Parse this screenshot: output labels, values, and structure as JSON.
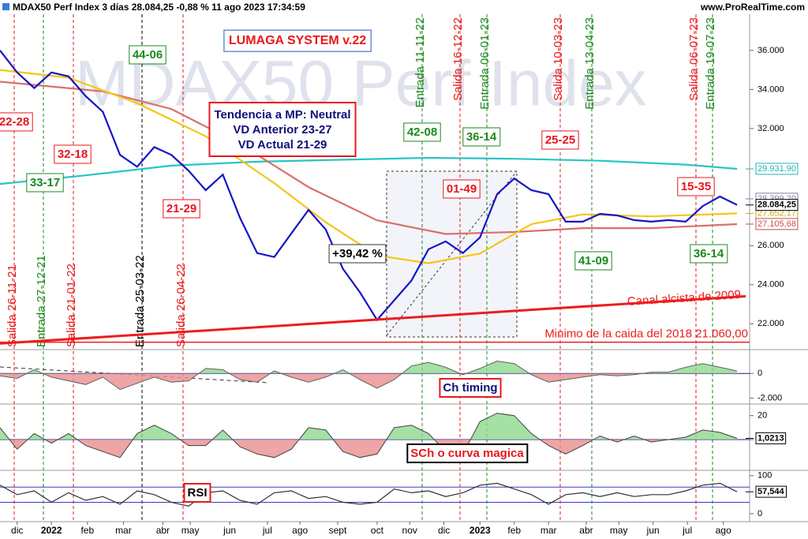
{
  "header": {
    "title": "MDAX50 Perf Index 3 días 28.084,25 -0,88 % 11 ago 2023 17:34:59",
    "source": "www.ProRealTime.com"
  },
  "chart_data": [
    {
      "type": "line",
      "title": "MDAX50 Perf Index",
      "x": [
        0,
        1,
        2,
        3,
        4,
        5,
        6,
        7,
        8,
        9,
        10,
        11,
        12,
        13,
        14,
        15,
        16,
        17,
        18,
        19,
        20,
        21,
        22,
        23,
        24,
        25,
        26,
        27,
        28,
        29,
        30,
        31,
        32,
        33,
        34,
        35,
        36,
        37,
        38,
        39,
        40,
        41,
        42,
        43
      ],
      "xlim": [
        0,
        43.5
      ],
      "xticks": [
        {
          "value": 1,
          "label": "dic"
        },
        {
          "value": 3,
          "label": "2022"
        },
        {
          "value": 5.1,
          "label": "feb"
        },
        {
          "value": 7.2,
          "label": "mar"
        },
        {
          "value": 9.5,
          "label": "abr"
        },
        {
          "value": 11.1,
          "label": "may"
        },
        {
          "value": 13.4,
          "label": "jun"
        },
        {
          "value": 15.6,
          "label": "jul"
        },
        {
          "value": 17.5,
          "label": "ago"
        },
        {
          "value": 19.7,
          "label": "sept"
        },
        {
          "value": 22,
          "label": "oct"
        },
        {
          "value": 23.9,
          "label": "nov"
        },
        {
          "value": 25.9,
          "label": "dic"
        },
        {
          "value": 28,
          "label": "2023"
        },
        {
          "value": 30,
          "label": "feb"
        },
        {
          "value": 32,
          "label": "mar"
        },
        {
          "value": 34.2,
          "label": "abr"
        },
        {
          "value": 36.1,
          "label": "may"
        },
        {
          "value": 38.1,
          "label": "jun"
        },
        {
          "value": 40.1,
          "label": "jul"
        },
        {
          "value": 42.2,
          "label": "ago"
        }
      ],
      "ylim": [
        20800,
        38500
      ],
      "yticks": [
        {
          "value": 22000,
          "label": "22.000"
        },
        {
          "value": 24000,
          "label": "24.000"
        },
        {
          "value": 26000,
          "label": "26.000"
        },
        {
          "value": 32000,
          "label": "32.000"
        },
        {
          "value": 34000,
          "label": "34.000"
        },
        {
          "value": 36000,
          "label": "36.000"
        }
      ],
      "series": [
        {
          "color": "#29c4c4",
          "x": [
            0,
            5,
            10,
            15,
            20,
            25,
            30,
            35,
            40,
            43
          ],
          "values": [
            29160,
            29600,
            30100,
            30300,
            30400,
            30500,
            30450,
            30350,
            30150,
            29931.9
          ]
        },
        {
          "color": "#d9706a",
          "x": [
            0,
            6,
            10,
            14,
            18,
            22,
            26,
            30,
            34,
            38,
            43
          ],
          "values": [
            34400,
            33900,
            33000,
            31200,
            29000,
            27300,
            26600,
            26700,
            26900,
            26900,
            27105.68
          ]
        },
        {
          "color": "#f5c518",
          "x": [
            0,
            4,
            8,
            12,
            16,
            19,
            22,
            25,
            28,
            31,
            34,
            38,
            43
          ],
          "values": [
            35000,
            34600,
            33300,
            31600,
            29200,
            27200,
            25500,
            25100,
            25600,
            27100,
            27600,
            27500,
            27652.17
          ]
        },
        {
          "color": "#1515c8",
          "values": [
            36000,
            34870,
            34070,
            34870,
            34670,
            33660,
            32860,
            30650,
            30040,
            31050,
            30650,
            29840,
            28840,
            29640,
            27430,
            25620,
            25420,
            26630,
            27830,
            26830,
            24820,
            23610,
            22200,
            23210,
            24210,
            25820,
            26220,
            25620,
            26420,
            28640,
            29440,
            28840,
            28640,
            27230,
            27230,
            27630,
            27550,
            27310,
            27230,
            27310,
            27230,
            28030,
            28520,
            28084.25
          ]
        }
      ],
      "channel": {
        "x": [
          0,
          43.5
        ],
        "values": [
          20990,
          23410
        ],
        "color": "#ee1c1c",
        "label": "Canal alcista de 2009"
      },
      "minimum": 21060,
      "minimum_label": "Minimo de la caida del 2018  21.060,00",
      "last_values": [
        {
          "value": 29931.9,
          "label": "29.931,90",
          "color": "#1fb5b5"
        },
        {
          "value": 28399.2,
          "label": "28.399,20",
          "color": "#8080a0"
        },
        {
          "value": 27652.17,
          "label": "27.652,17",
          "color": "#d4a800"
        },
        {
          "value": 27105.68,
          "label": "27.105,68",
          "color": "#c0504d"
        },
        {
          "value": 28084.25,
          "label": "28.084,25",
          "color": "#000000"
        }
      ],
      "system": "LUMAGA SYSTEM v.22",
      "trend": [
        "Tendencia a MP: Neutral",
        "VD Anterior 23-27",
        "VD Actual 21-29"
      ],
      "annotations": [
        {
          "text": "22-28",
          "color": "#e8171b"
        },
        {
          "text": "32-18",
          "color": "#e8171b"
        },
        {
          "text": "33-17",
          "color": "#1a8a1a"
        },
        {
          "text": "44-06",
          "color": "#1a8a1a"
        },
        {
          "text": "21-29",
          "color": "#e8171b"
        },
        {
          "text": "42-08",
          "color": "#1a8a1a"
        },
        {
          "text": "36-14",
          "color": "#1a8a1a"
        },
        {
          "text": "25-25",
          "color": "#e8171b"
        },
        {
          "text": "01-49",
          "color": "#e8171b"
        },
        {
          "text": "+39,42 %",
          "color": "#000000"
        },
        {
          "text": "41-09",
          "color": "#1a8a1a"
        },
        {
          "text": "15-35",
          "color": "#e8171b"
        },
        {
          "text": "36-14",
          "color": "#1a8a1a"
        }
      ],
      "signals": [
        {
          "text": "Salida 26-11-21",
          "color": "#e8171b"
        },
        {
          "text": "Entrada 27-12-21",
          "color": "#1a8a1a"
        },
        {
          "text": "Salida 21-01-22",
          "color": "#e8171b"
        },
        {
          "text": "Entrada 25-03-22",
          "color": "#000000"
        },
        {
          "text": "Salida 26-04-22",
          "color": "#e8171b"
        },
        {
          "text": "Entrada 11-11-22",
          "color": "#1a8a1a"
        },
        {
          "text": "Salida 16-12-22",
          "color": "#e8171b"
        },
        {
          "text": "Entrada 06-01-23",
          "color": "#1a8a1a"
        },
        {
          "text": "Salida 10-03-23",
          "color": "#e8171b"
        },
        {
          "text": "Entrada 13-04-23",
          "color": "#1a8a1a"
        },
        {
          "text": "Salida 06-07-23",
          "color": "#e8171b"
        },
        {
          "text": "Entrada 19-07-23",
          "color": "#1a8a1a"
        }
      ]
    },
    {
      "type": "area",
      "title": "Ch timing",
      "x": [
        0,
        1,
        2,
        3,
        4,
        5,
        6,
        7,
        8,
        9,
        10,
        11,
        12,
        13,
        14,
        15,
        16,
        17,
        18,
        19,
        20,
        21,
        22,
        23,
        24,
        25,
        26,
        27,
        28,
        29,
        30,
        31,
        32,
        33,
        34,
        35,
        36,
        37,
        38,
        39,
        40,
        41,
        42,
        43
      ],
      "ylim": [
        -2350,
        1800
      ],
      "yticks": [
        0,
        {
          "value": -2000,
          "label": "-2.000"
        }
      ],
      "positive_color": "#8fd88f",
      "negative_color": "#e88f8f",
      "series": [
        {
          "color": "#606060",
          "values": [
            -200,
            -400,
            300,
            -300,
            -600,
            -900,
            -300,
            -1300,
            -800,
            -300,
            -700,
            -600,
            400,
            300,
            -500,
            -700,
            200,
            -300,
            -700,
            -300,
            300,
            -500,
            -1200,
            -500,
            600,
            900,
            500,
            -100,
            400,
            1000,
            800,
            -100,
            -700,
            -500,
            -300,
            -100,
            -200,
            -100,
            100,
            100,
            500,
            800,
            500,
            200
          ]
        }
      ]
    },
    {
      "type": "area",
      "title": "SCh o curva magica",
      "x": [
        0,
        1,
        2,
        3,
        4,
        5,
        6,
        7,
        8,
        9,
        10,
        11,
        12,
        13,
        14,
        15,
        16,
        17,
        18,
        19,
        20,
        21,
        22,
        23,
        24,
        25,
        26,
        27,
        28,
        29,
        30,
        31,
        32,
        33,
        34,
        35,
        36,
        37,
        38,
        39,
        40,
        41,
        42,
        43
      ],
      "ylim": [
        -25,
        29
      ],
      "yticks": [
        20,
        0
      ],
      "positive_color": "#8fd88f",
      "negative_color": "#e88f8f",
      "last_values": [
        {
          "value": 1.0213,
          "label": "1,0213",
          "color": "#000000"
        }
      ],
      "series": [
        {
          "color": "#404040",
          "values": [
            10,
            -8,
            5,
            -3,
            5,
            -5,
            -10,
            -15,
            5,
            12,
            5,
            -5,
            -5,
            8,
            -6,
            -12,
            -15,
            -8,
            10,
            8,
            -10,
            -15,
            -12,
            10,
            12,
            5,
            -10,
            -12,
            15,
            22,
            20,
            5,
            -5,
            -12,
            -5,
            3,
            -2,
            3,
            -2,
            0,
            2,
            8,
            6,
            1.0213
          ]
        }
      ]
    },
    {
      "type": "line",
      "title": "RSI",
      "x": [
        0,
        1,
        2,
        3,
        4,
        5,
        6,
        7,
        8,
        9,
        10,
        11,
        12,
        13,
        14,
        15,
        16,
        17,
        18,
        19,
        20,
        21,
        22,
        23,
        24,
        25,
        26,
        27,
        28,
        29,
        30,
        31,
        32,
        33,
        34,
        35,
        36,
        37,
        38,
        39,
        40,
        41,
        42,
        43
      ],
      "ylim": [
        -19,
        110
      ],
      "yticks": [
        100,
        0
      ],
      "levels": [
        70,
        30
      ],
      "level_color": "#3a3ac0",
      "last_values": [
        {
          "value": 57.544,
          "label": "57,544",
          "color": "#000000"
        }
      ],
      "series": [
        {
          "color": "#303030",
          "values": [
            75,
            50,
            60,
            30,
            55,
            35,
            45,
            25,
            60,
            50,
            30,
            20,
            55,
            60,
            35,
            25,
            55,
            60,
            40,
            45,
            30,
            25,
            30,
            65,
            55,
            60,
            45,
            55,
            75,
            80,
            65,
            50,
            25,
            50,
            55,
            45,
            55,
            45,
            50,
            50,
            60,
            75,
            80,
            57.544
          ]
        }
      ]
    }
  ]
}
